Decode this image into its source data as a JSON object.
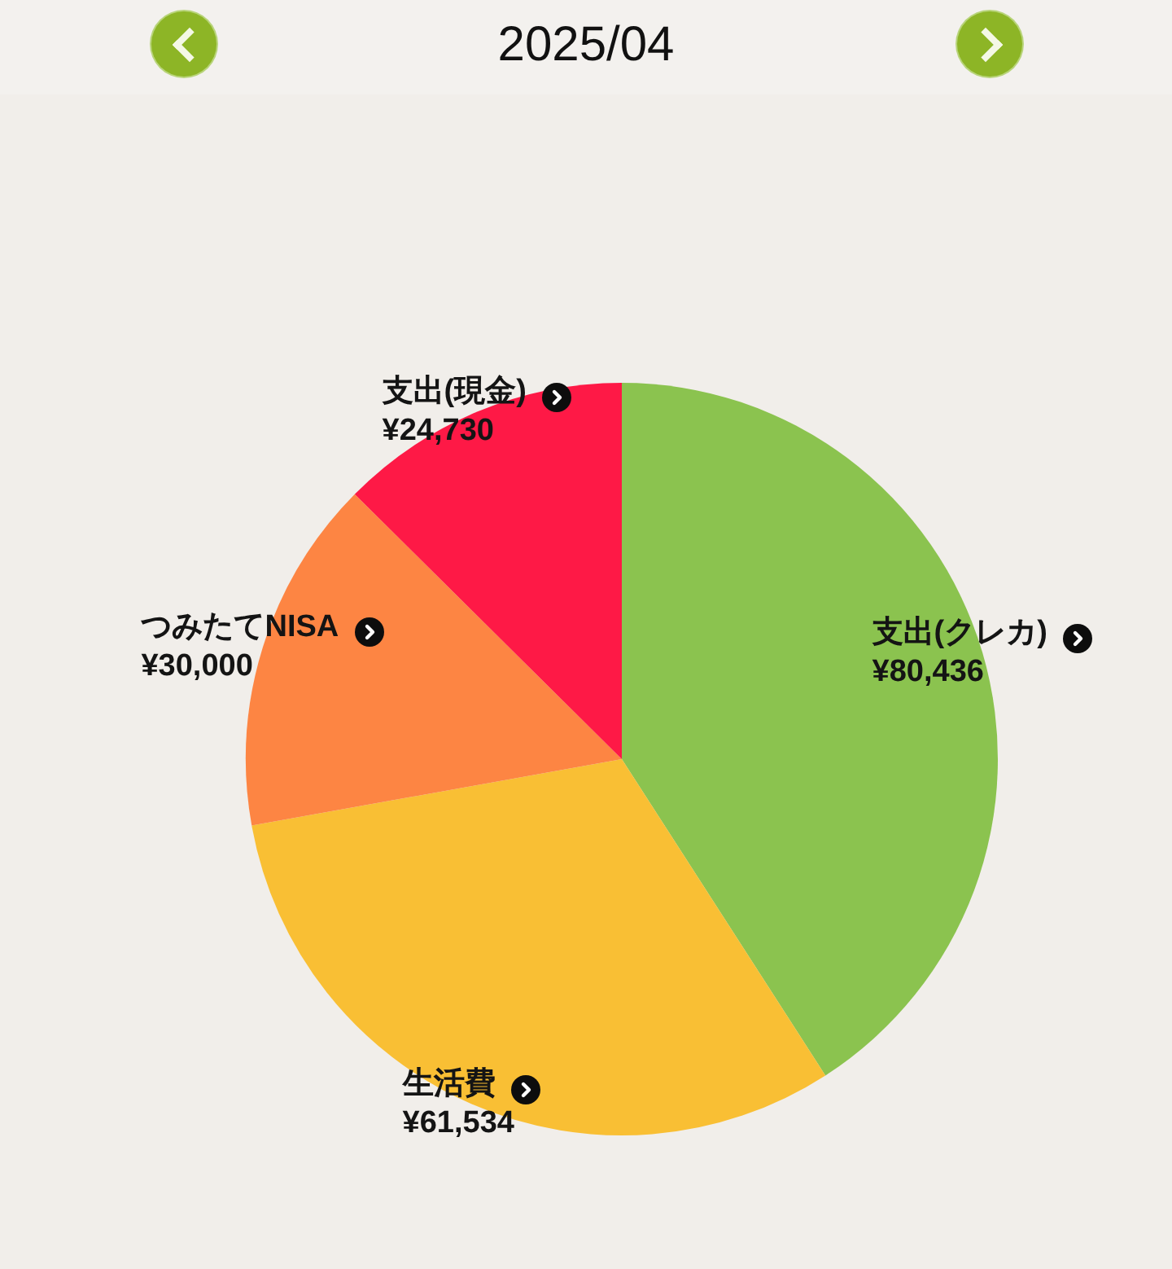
{
  "chart_data": {
    "type": "pie",
    "title": "2025/04",
    "categories": [
      "支出(クレカ)",
      "生活費",
      "つみたてNISA",
      "支出(現金)"
    ],
    "values": [
      80436,
      61534,
      30000,
      24730
    ],
    "value_labels": [
      "¥80,436",
      "¥61,534",
      "¥30,000",
      "¥24,730"
    ],
    "colors": [
      "#8bc34f",
      "#f9bf34",
      "#fd8543",
      "#fe1946"
    ],
    "legend": false
  }
}
